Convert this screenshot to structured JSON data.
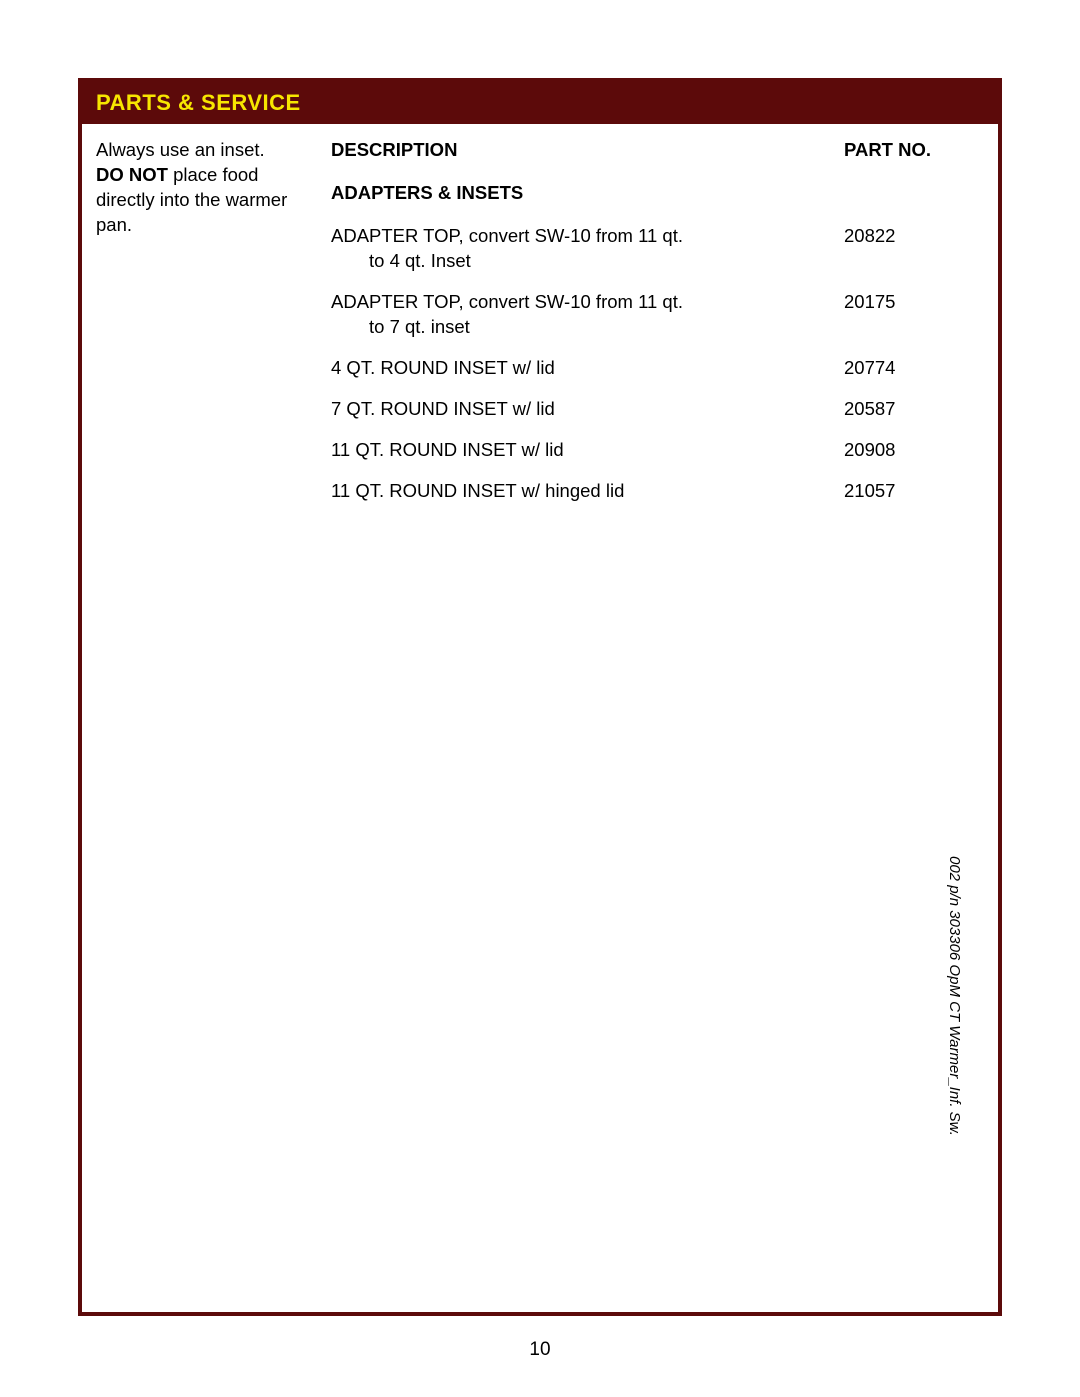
{
  "header": {
    "title": "PARTS & SERVICE"
  },
  "sidebar": {
    "line1": "Always use an inset.",
    "donot": "DO NOT",
    "line2_rest": " place food directly into the warmer pan."
  },
  "columns": {
    "description": "DESCRIPTION",
    "part_no": "PART NO."
  },
  "subheading": "ADAPTERS & INSETS",
  "rows": [
    {
      "desc": "ADAPTER TOP, convert SW-10 from 11 qt.",
      "sub": "to 4 qt. Inset",
      "part": "20822"
    },
    {
      "desc": "ADAPTER TOP, convert SW-10 from 11 qt.",
      "sub": "to 7 qt. inset",
      "part": "20175"
    },
    {
      "desc": "4 QT. ROUND INSET w/ lid",
      "sub": "",
      "part": "20774"
    },
    {
      "desc": "7 QT. ROUND INSET w/ lid",
      "sub": "",
      "part": "20587"
    },
    {
      "desc": "11 QT. ROUND INSET w/ lid",
      "sub": "",
      "part": "20908"
    },
    {
      "desc": "11 QT. ROUND INSET w/ hinged lid",
      "sub": "",
      "part": "21057"
    }
  ],
  "page_number": "10",
  "side_label": "002  p/n 303306 OpM CT Warmer_Inf. Sw.",
  "colors": {
    "frame": "#5c0a0a",
    "header_bg": "#5c0a0a",
    "header_text": "#f7e600",
    "body_text": "#000000",
    "page_bg": "#ffffff"
  }
}
